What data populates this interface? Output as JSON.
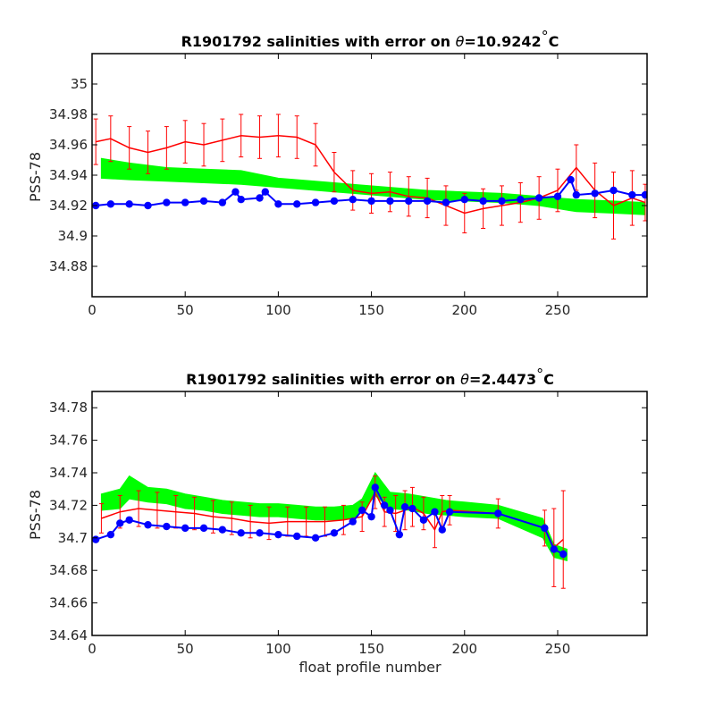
{
  "chart_data": [
    {
      "type": "line",
      "title_prefix": "R1901792 salinities with error on ",
      "title_theta": "θ",
      "title_suffix": "=10.9242",
      "title_deg": "°",
      "title_unit": "C",
      "ylabel": "PSS-78",
      "xlabel": "",
      "xlim": [
        0,
        298
      ],
      "ylim": [
        34.86,
        35.02
      ],
      "xticks": [
        0,
        50,
        100,
        150,
        200,
        250
      ],
      "yticks": [
        "34.88",
        "34.9",
        "34.92",
        "34.94",
        "34.96",
        "34.98",
        "35"
      ],
      "series_colors": {
        "green_band": "#00ff00",
        "red": "#ff0000",
        "blue": "#0000ff"
      },
      "green_band": {
        "x": [
          5,
          20,
          40,
          60,
          80,
          100,
          120,
          140,
          160,
          180,
          200,
          220,
          240,
          260,
          280,
          297
        ],
        "upper": [
          34.951,
          34.948,
          34.945,
          34.944,
          34.943,
          34.938,
          34.936,
          34.934,
          34.932,
          34.93,
          34.929,
          34.928,
          34.926,
          34.924,
          34.923,
          34.922
        ],
        "lower": [
          34.938,
          34.937,
          34.936,
          34.935,
          34.934,
          34.932,
          34.93,
          34.928,
          34.926,
          34.924,
          34.923,
          34.922,
          34.92,
          34.916,
          34.915,
          34.914
        ]
      },
      "red": {
        "x": [
          2,
          10,
          20,
          30,
          40,
          50,
          60,
          70,
          80,
          90,
          100,
          110,
          120,
          130,
          140,
          150,
          160,
          170,
          180,
          190,
          200,
          210,
          220,
          230,
          240,
          250,
          260,
          270,
          280,
          290,
          297
        ],
        "y": [
          34.962,
          34.964,
          34.958,
          34.955,
          34.958,
          34.962,
          34.96,
          34.963,
          34.966,
          34.965,
          34.966,
          34.965,
          34.96,
          34.942,
          34.93,
          34.928,
          34.929,
          34.926,
          34.925,
          34.92,
          34.915,
          34.918,
          34.92,
          34.922,
          34.925,
          34.93,
          34.945,
          34.93,
          34.92,
          34.925,
          34.922
        ],
        "err": [
          0.015,
          0.015,
          0.014,
          0.014,
          0.014,
          0.014,
          0.014,
          0.014,
          0.014,
          0.014,
          0.014,
          0.014,
          0.014,
          0.013,
          0.013,
          0.013,
          0.013,
          0.013,
          0.013,
          0.013,
          0.013,
          0.013,
          0.013,
          0.013,
          0.014,
          0.014,
          0.015,
          0.018,
          0.022,
          0.018,
          0.012
        ]
      },
      "blue": {
        "x": [
          2,
          10,
          20,
          30,
          40,
          50,
          60,
          70,
          77,
          80,
          90,
          93,
          100,
          110,
          120,
          130,
          140,
          150,
          160,
          170,
          180,
          190,
          200,
          210,
          220,
          230,
          240,
          250,
          257,
          260,
          270,
          280,
          290,
          297
        ],
        "y": [
          34.92,
          34.921,
          34.921,
          34.92,
          34.922,
          34.922,
          34.923,
          34.922,
          34.929,
          34.924,
          34.925,
          34.929,
          34.921,
          34.921,
          34.922,
          34.923,
          34.924,
          34.923,
          34.923,
          34.923,
          34.923,
          34.922,
          34.924,
          34.923,
          34.923,
          34.924,
          34.925,
          34.926,
          34.937,
          34.927,
          34.928,
          34.93,
          34.927,
          34.927
        ]
      }
    },
    {
      "type": "line",
      "title_prefix": "R1901792 salinities with error on ",
      "title_theta": "θ",
      "title_suffix": "=2.4473",
      "title_deg": "°",
      "title_unit": "C",
      "ylabel": "PSS-78",
      "xlabel": "float profile number",
      "xlim": [
        0,
        298
      ],
      "ylim": [
        34.64,
        34.79
      ],
      "xticks": [
        0,
        50,
        100,
        150,
        200,
        250
      ],
      "yticks": [
        "34.64",
        "34.66",
        "34.68",
        "34.7",
        "34.72",
        "34.74",
        "34.76",
        "34.78"
      ],
      "series_colors": {
        "green_band": "#00ff00",
        "red": "#ff0000",
        "blue": "#0000ff"
      },
      "green_band": {
        "x": [
          5,
          15,
          20,
          30,
          40,
          50,
          60,
          70,
          80,
          90,
          100,
          110,
          120,
          130,
          140,
          145,
          152,
          160,
          170,
          180,
          190,
          200,
          218,
          242,
          248,
          255
        ],
        "upper": [
          34.727,
          34.73,
          34.738,
          34.731,
          34.73,
          34.727,
          34.725,
          34.723,
          34.722,
          34.721,
          34.721,
          34.72,
          34.719,
          34.719,
          34.72,
          34.724,
          34.74,
          34.728,
          34.727,
          34.725,
          34.723,
          34.722,
          34.72,
          34.712,
          34.696,
          34.693
        ],
        "lower": [
          34.717,
          34.718,
          34.724,
          34.722,
          34.721,
          34.718,
          34.717,
          34.715,
          34.714,
          34.713,
          34.713,
          34.712,
          34.711,
          34.711,
          34.712,
          34.716,
          34.726,
          34.718,
          34.717,
          34.715,
          34.714,
          34.713,
          34.712,
          34.7,
          34.688,
          34.686
        ]
      },
      "red": {
        "x": [
          5,
          15,
          25,
          35,
          45,
          55,
          65,
          75,
          85,
          95,
          105,
          115,
          125,
          135,
          145,
          152,
          157,
          163,
          168,
          172,
          178,
          184,
          188,
          192,
          218,
          243,
          248,
          253
        ],
        "y": [
          34.712,
          34.716,
          34.718,
          34.717,
          34.716,
          34.715,
          34.713,
          34.712,
          34.71,
          34.709,
          34.71,
          34.71,
          34.71,
          34.711,
          34.713,
          34.728,
          34.716,
          34.715,
          34.717,
          34.719,
          34.715,
          34.705,
          34.716,
          34.717,
          34.715,
          34.706,
          34.694,
          34.699
        ],
        "err": [
          0.009,
          0.01,
          0.011,
          0.011,
          0.01,
          0.01,
          0.01,
          0.01,
          0.01,
          0.01,
          0.009,
          0.009,
          0.009,
          0.009,
          0.009,
          0.01,
          0.009,
          0.011,
          0.012,
          0.012,
          0.01,
          0.011,
          0.01,
          0.009,
          0.009,
          0.011,
          0.024,
          0.03
        ]
      },
      "blue": {
        "x": [
          2,
          10,
          15,
          20,
          30,
          40,
          50,
          60,
          70,
          80,
          90,
          100,
          110,
          120,
          130,
          140,
          145,
          150,
          152,
          157,
          160,
          165,
          168,
          172,
          178,
          184,
          188,
          192,
          218,
          243,
          248,
          253
        ],
        "y": [
          34.699,
          34.702,
          34.709,
          34.711,
          34.708,
          34.707,
          34.706,
          34.706,
          34.705,
          34.703,
          34.703,
          34.702,
          34.701,
          34.7,
          34.703,
          34.71,
          34.717,
          34.713,
          34.731,
          34.72,
          34.717,
          34.702,
          34.719,
          34.718,
          34.711,
          34.716,
          34.705,
          34.716,
          34.715,
          34.706,
          34.693,
          34.69
        ]
      }
    }
  ]
}
